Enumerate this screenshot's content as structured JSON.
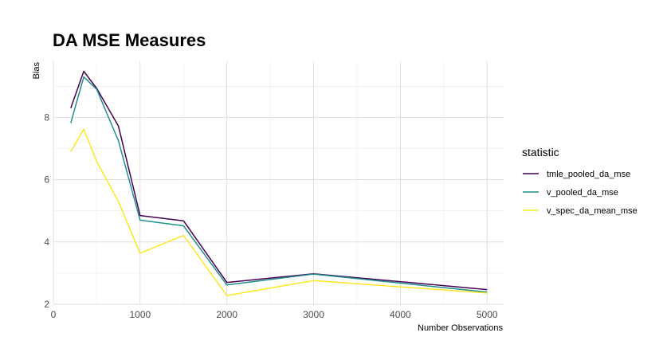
{
  "chart_data": {
    "type": "line",
    "title": "DA MSE Measures",
    "xlabel": "Number Observations",
    "ylabel": "Bias",
    "xlim": [
      0,
      5200
    ],
    "ylim": [
      2,
      9.8
    ],
    "x_ticks": [
      0,
      1000,
      2000,
      3000,
      4000,
      5000
    ],
    "y_ticks": [
      2,
      4,
      6,
      8
    ],
    "grid": true,
    "legend": {
      "title": "statistic",
      "placement": "right"
    },
    "x": [
      200,
      350,
      500,
      750,
      1000,
      1500,
      2000,
      3000,
      5000
    ],
    "series": [
      {
        "name": "tmle_pooled_da_mse",
        "color": "#440154",
        "values": [
          8.3,
          9.48,
          8.93,
          7.72,
          4.85,
          4.68,
          2.7,
          2.98,
          2.47
        ]
      },
      {
        "name": "v_pooled_da_mse",
        "color": "#21908c",
        "values": [
          7.82,
          9.3,
          8.9,
          7.25,
          4.7,
          4.52,
          2.62,
          2.97,
          2.39
        ]
      },
      {
        "name": "v_spec_da_mean_mse",
        "color": "#fde725",
        "values": [
          6.9,
          7.62,
          6.58,
          5.3,
          3.64,
          4.21,
          2.28,
          2.76,
          2.36
        ]
      }
    ]
  }
}
